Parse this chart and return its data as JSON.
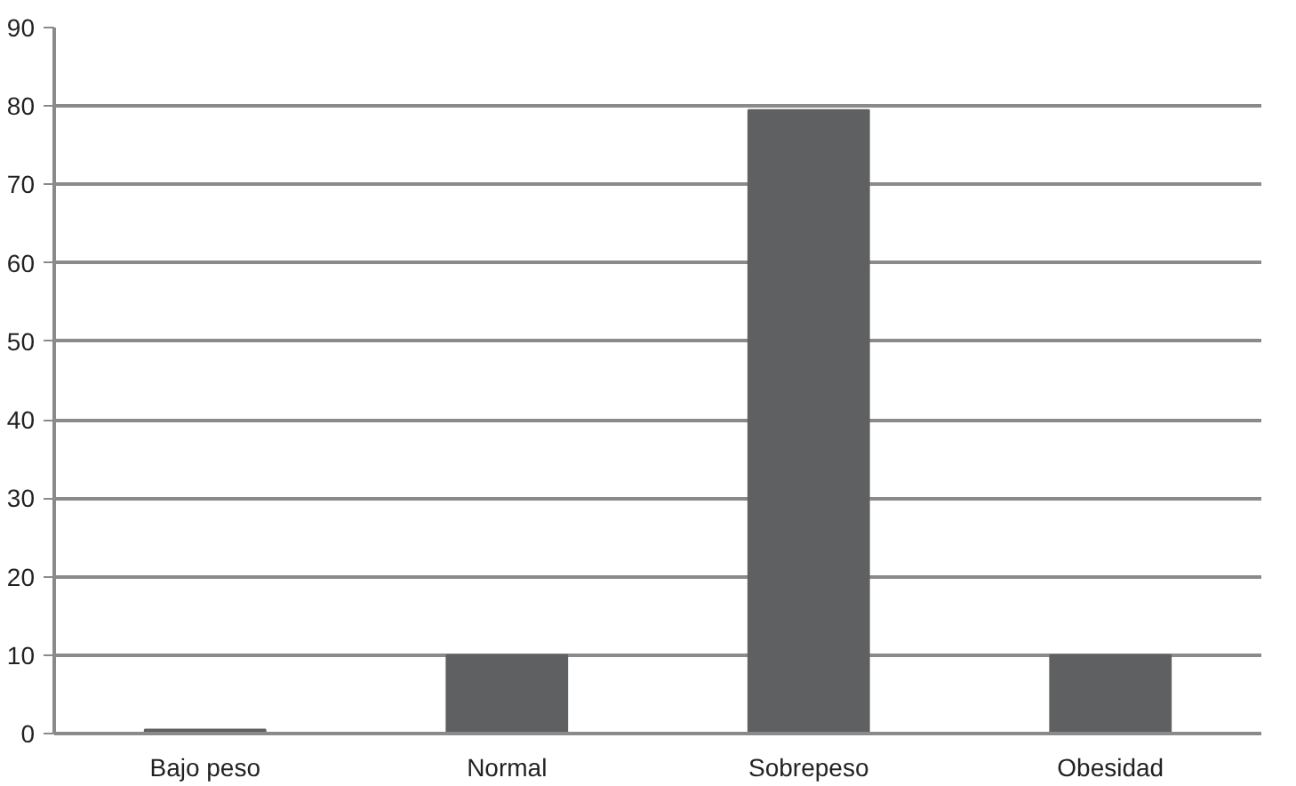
{
  "chart_data": {
    "type": "bar",
    "categories": [
      "Bajo peso",
      "Normal",
      "Sobrepeso",
      "Obesidad"
    ],
    "values": [
      0.5,
      10,
      79.5,
      10
    ],
    "color": "#5f6062",
    "ylim": [
      0,
      90
    ],
    "yticks": [
      0,
      10,
      20,
      30,
      40,
      50,
      60,
      70,
      80,
      90
    ],
    "grid": "y"
  }
}
